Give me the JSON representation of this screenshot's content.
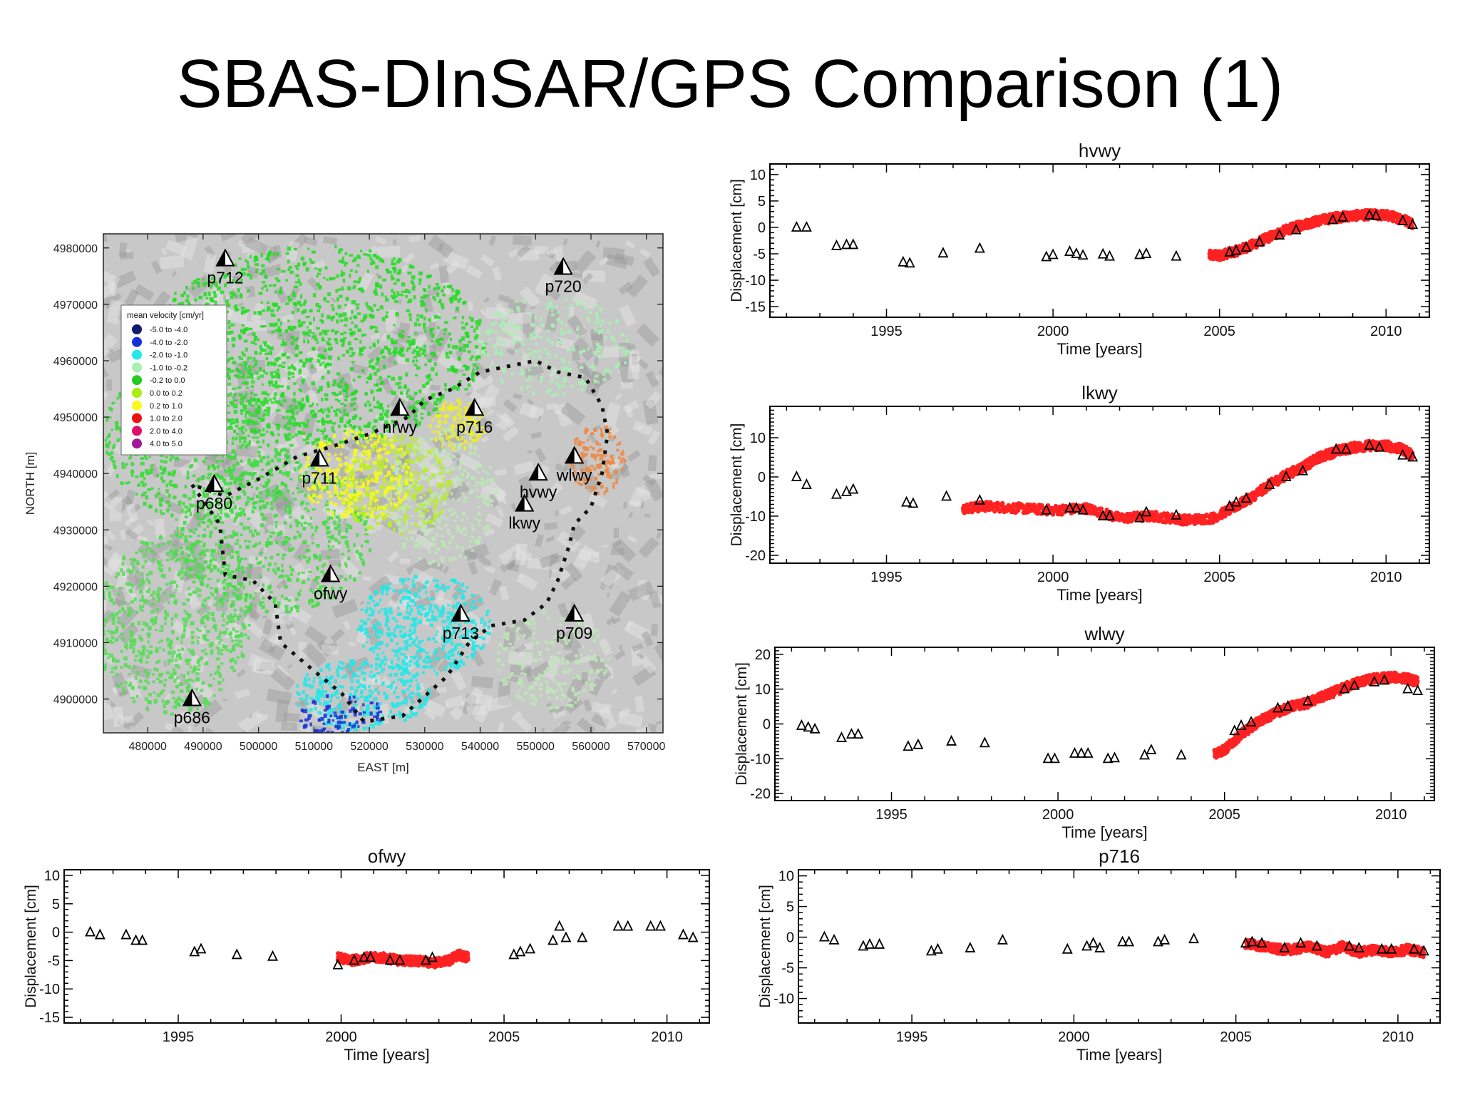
{
  "title": "SBAS-DInSAR/GPS Comparison (1)",
  "colors": {
    "sar": "#ff2222",
    "gps": "#000000"
  },
  "map": {
    "xlabel": "EAST [m]",
    "ylabel": "NORTH [m]",
    "xticks": [
      "480000",
      "490000",
      "500000",
      "510000",
      "520000",
      "530000",
      "540000",
      "550000",
      "560000",
      "570000"
    ],
    "yticks": [
      "4980000",
      "4970000",
      "4960000",
      "4950000",
      "4940000",
      "4930000",
      "4920000",
      "4910000",
      "4900000"
    ],
    "xlim": [
      472000,
      573000
    ],
    "ylim": [
      4894000,
      4982500
    ],
    "legend": {
      "title": "mean velocity [cm/yr]",
      "items": [
        {
          "label": "-5.0  to  -4.0",
          "color": "#101a6e"
        },
        {
          "label": "-4.0  to  -2.0",
          "color": "#1530d8"
        },
        {
          "label": "-2.0  to  -1.0",
          "color": "#22e8e8"
        },
        {
          "label": "-1.0  to  -0.2",
          "color": "#a8f0b0"
        },
        {
          "label": "-0.2  to  0.0",
          "color": "#22cc22"
        },
        {
          "label": "0.0  to  0.2",
          "color": "#a8ee10"
        },
        {
          "label": "0.2  to  1.0",
          "color": "#f8f820"
        },
        {
          "label": "1.0  to  2.0",
          "color": "#ee1010"
        },
        {
          "label": "2.0  to  4.0",
          "color": "#e0106a"
        },
        {
          "label": "4.0  to  5.0",
          "color": "#a01a9a"
        }
      ]
    },
    "stations": [
      {
        "name": "p712",
        "e": 494000,
        "n": 4978000
      },
      {
        "name": "p720",
        "e": 555000,
        "n": 4976500
      },
      {
        "name": "nrwy",
        "e": 525500,
        "n": 4951500
      },
      {
        "name": "p716",
        "e": 539000,
        "n": 4951500
      },
      {
        "name": "p711",
        "e": 511000,
        "n": 4942500
      },
      {
        "name": "wlwy",
        "e": 557000,
        "n": 4943000
      },
      {
        "name": "p680",
        "e": 492000,
        "n": 4938000
      },
      {
        "name": "hvwy",
        "e": 550500,
        "n": 4940000
      },
      {
        "name": "lkwy",
        "e": 548000,
        "n": 4934500
      },
      {
        "name": "ofwy",
        "e": 513000,
        "n": 4922000
      },
      {
        "name": "p713",
        "e": 536500,
        "n": 4915000
      },
      {
        "name": "p709",
        "e": 557000,
        "n": 4915000
      },
      {
        "name": "p686",
        "e": 488000,
        "n": 4900000
      }
    ]
  },
  "chart_data": [
    {
      "type": "scatter",
      "title": "hvwy",
      "xlabel": "Time [years]",
      "ylabel": "Displacement [cm]",
      "xlim": [
        1991.5,
        2011.3
      ],
      "ylim": [
        -17,
        12
      ],
      "xticks": [
        "1995",
        "2000",
        "2005",
        "2010"
      ],
      "yticks": [
        "10",
        "5",
        "0",
        "-5",
        "-10",
        "-15"
      ],
      "series": [
        {
          "name": "",
          "kind": "sar",
          "x": [
            2004.7,
            2005.0,
            2005.5,
            2006.0,
            2006.5,
            2007.0,
            2007.5,
            2008.0,
            2008.5,
            2009.0,
            2009.5,
            2010.0,
            2010.5,
            2010.8
          ],
          "y": [
            -5.3,
            -5.3,
            -4.5,
            -3.3,
            -1.8,
            -0.5,
            0.5,
            1.3,
            1.9,
            2.2,
            2.4,
            2.3,
            1.6,
            0.7
          ]
        },
        {
          "name": "",
          "kind": "gps",
          "x": [
            1992.3,
            1992.6,
            1993.5,
            1993.8,
            1994.0,
            1995.5,
            1995.7,
            1996.7,
            1997.8,
            1999.8,
            2000.0,
            2000.5,
            2000.7,
            2000.9,
            2001.5,
            2001.7,
            2002.6,
            2002.8,
            2003.7,
            2005.3,
            2005.5,
            2005.8,
            2006.2,
            2006.8,
            2007.3,
            2008.4,
            2008.7,
            2009.5,
            2009.7,
            2010.5,
            2010.8
          ],
          "y": [
            0,
            0,
            -3.5,
            -3.3,
            -3.3,
            -6.6,
            -6.8,
            -4.9,
            -4,
            -5.6,
            -5.2,
            -4.6,
            -5,
            -5.3,
            -5.1,
            -5.5,
            -5.2,
            -5,
            -5.5,
            -4.7,
            -4.4,
            -3.8,
            -2.8,
            -1.5,
            -0.5,
            1.4,
            1.9,
            2.3,
            2.2,
            1.2,
            0.5
          ]
        }
      ]
    },
    {
      "type": "scatter",
      "title": "lkwy",
      "xlabel": "Time [years]",
      "ylabel": "Displacement [cm]",
      "xlim": [
        1991.5,
        2011.3
      ],
      "ylim": [
        -22,
        18
      ],
      "xticks": [
        "1995",
        "2000",
        "2005",
        "2010"
      ],
      "yticks": [
        "10",
        "0",
        "-10",
        "-20"
      ],
      "series": [
        {
          "name": "",
          "kind": "sar",
          "x": [
            1997.3,
            1998.0,
            1999.0,
            2000.0,
            2001.0,
            2002.0,
            2003.0,
            2004.0,
            2004.8,
            2005.5,
            2006.0,
            2006.5,
            2007.0,
            2007.5,
            2008.0,
            2008.5,
            2009.0,
            2009.5,
            2010.0,
            2010.5,
            2010.8
          ],
          "y": [
            -8,
            -7.5,
            -8,
            -8.5,
            -8,
            -10.5,
            -10,
            -11,
            -10.5,
            -7.5,
            -5,
            -2,
            0.5,
            2.5,
            5,
            6.5,
            7.5,
            8,
            8,
            7,
            5.5
          ]
        },
        {
          "name": "",
          "kind": "gps",
          "x": [
            1992.3,
            1992.6,
            1993.5,
            1993.8,
            1994.0,
            1995.6,
            1995.8,
            1996.8,
            1997.8,
            1999.8,
            2000.5,
            2000.7,
            2000.9,
            2001.5,
            2001.7,
            2002.6,
            2002.8,
            2003.7,
            2005.3,
            2005.5,
            2005.8,
            2006.5,
            2007.0,
            2007.5,
            2008.5,
            2008.8,
            2009.5,
            2009.8,
            2010.5,
            2010.8
          ],
          "y": [
            0,
            -2,
            -4.5,
            -3.8,
            -3.2,
            -6.5,
            -6.8,
            -5,
            -6,
            -8.5,
            -8,
            -8,
            -8.5,
            -10,
            -10,
            -10.5,
            -9,
            -9.8,
            -7.5,
            -6.5,
            -5.5,
            -2,
            0,
            1.5,
            7,
            7,
            8,
            7.5,
            5.5,
            5
          ]
        }
      ]
    },
    {
      "type": "scatter",
      "title": "wlwy",
      "xlabel": "Time [years]",
      "ylabel": "Displacement [cm]",
      "xlim": [
        1991.5,
        2011.3
      ],
      "ylim": [
        -22,
        22
      ],
      "xticks": [
        "1995",
        "2000",
        "2005",
        "2010"
      ],
      "yticks": [
        "20",
        "10",
        "0",
        "-10",
        "-20"
      ],
      "series": [
        {
          "name": "",
          "kind": "sar",
          "x": [
            2004.7,
            2005.0,
            2005.5,
            2006.0,
            2006.5,
            2007.0,
            2007.5,
            2008.0,
            2008.5,
            2009.0,
            2009.5,
            2010.0,
            2010.5,
            2010.8
          ],
          "y": [
            -8.5,
            -7.5,
            -3,
            0.5,
            3,
            5,
            6,
            8,
            10,
            12,
            13,
            13.5,
            13,
            12
          ]
        },
        {
          "name": "",
          "kind": "gps",
          "x": [
            1992.3,
            1992.5,
            1992.7,
            1993.5,
            1993.8,
            1994.0,
            1995.5,
            1995.8,
            1996.8,
            1997.8,
            1999.7,
            1999.9,
            2000.5,
            2000.7,
            2000.9,
            2001.5,
            2001.7,
            2002.6,
            2002.8,
            2003.7,
            2005.3,
            2005.5,
            2005.8,
            2006.6,
            2006.9,
            2007.5,
            2008.6,
            2008.9,
            2009.5,
            2009.8,
            2010.5,
            2010.8
          ],
          "y": [
            -0.5,
            -1,
            -1.5,
            -4,
            -3,
            -3,
            -6.5,
            -6,
            -5,
            -5.5,
            -10,
            -10,
            -8.5,
            -8.5,
            -8.5,
            -10,
            -9.8,
            -9,
            -7.5,
            -9,
            -2,
            -0.5,
            0.5,
            4.5,
            5,
            6.5,
            10,
            11,
            12,
            12.5,
            10,
            9.5
          ]
        }
      ]
    },
    {
      "type": "scatter",
      "title": "ofwy",
      "xlabel": "Time [years]",
      "ylabel": "Displacement [cm]",
      "xlim": [
        1991.5,
        2011.3
      ],
      "ylim": [
        -16,
        11
      ],
      "xticks": [
        "1995",
        "2000",
        "2005",
        "2010"
      ],
      "yticks": [
        "10",
        "5",
        "0",
        "-5",
        "-10",
        "-15"
      ],
      "series": [
        {
          "name": "",
          "kind": "sar",
          "x": [
            1999.9,
            2000.3,
            2000.8,
            2001.3,
            2001.8,
            2002.3,
            2002.8,
            2003.3,
            2003.6,
            2003.9
          ],
          "y": [
            -4.5,
            -5,
            -4.5,
            -4.5,
            -5,
            -5,
            -5.5,
            -5,
            -4,
            -4.5
          ]
        },
        {
          "name": "",
          "kind": "gps",
          "x": [
            1992.3,
            1992.6,
            1993.4,
            1993.7,
            1993.9,
            1995.5,
            1995.7,
            1996.8,
            1997.9,
            1999.9,
            2000.4,
            2000.7,
            2000.9,
            2001.5,
            2001.8,
            2002.6,
            2002.8,
            2005.3,
            2005.5,
            2005.8,
            2006.5,
            2006.7,
            2006.9,
            2007.4,
            2008.5,
            2008.8,
            2009.5,
            2009.8,
            2010.5,
            2010.8
          ],
          "y": [
            0,
            -0.5,
            -0.5,
            -1.5,
            -1.5,
            -3.5,
            -3,
            -4,
            -4.3,
            -5.8,
            -5,
            -4.5,
            -4.5,
            -5,
            -5,
            -5,
            -4.5,
            -4,
            -3.5,
            -3,
            -1.5,
            1,
            -1,
            -1,
            1,
            1,
            1,
            1,
            -0.5,
            -1
          ]
        }
      ]
    },
    {
      "type": "scatter",
      "title": "p716",
      "xlabel": "Time [years]",
      "ylabel": "Displacement [cm]",
      "xlim": [
        1991.5,
        2011.3
      ],
      "ylim": [
        -14,
        11
      ],
      "xticks": [
        "1995",
        "2000",
        "2005",
        "2010"
      ],
      "yticks": [
        "10",
        "5",
        "0",
        "-5",
        "-10"
      ],
      "series": [
        {
          "name": "",
          "kind": "sar",
          "x": [
            2005.3,
            2005.8,
            2006.3,
            2006.8,
            2007.3,
            2007.8,
            2008.3,
            2008.8,
            2009.3,
            2009.8,
            2010.3,
            2010.8
          ],
          "y": [
            -1,
            -1.5,
            -2,
            -2,
            -1.5,
            -2.5,
            -1.5,
            -2.5,
            -2,
            -2.5,
            -2,
            -2.5
          ]
        },
        {
          "name": "",
          "kind": "gps",
          "x": [
            1992.3,
            1992.6,
            1993.5,
            1993.7,
            1994.0,
            1995.6,
            1995.8,
            1996.8,
            1997.8,
            1999.8,
            2000.4,
            2000.6,
            2000.8,
            2001.5,
            2001.7,
            2002.6,
            2002.8,
            2003.7,
            2005.3,
            2005.5,
            2005.8,
            2006.5,
            2007.0,
            2007.5,
            2008.5,
            2008.8,
            2009.5,
            2009.8,
            2010.5,
            2010.8
          ],
          "y": [
            0,
            -0.5,
            -1.5,
            -1.2,
            -1.2,
            -2.3,
            -2,
            -1.8,
            -0.5,
            -2,
            -1.5,
            -1,
            -1.8,
            -0.8,
            -0.8,
            -0.8,
            -0.5,
            -0.3,
            -1,
            -0.8,
            -1,
            -1.8,
            -1,
            -1.5,
            -1.5,
            -1.8,
            -2,
            -2,
            -2,
            -2.3
          ]
        }
      ]
    }
  ]
}
